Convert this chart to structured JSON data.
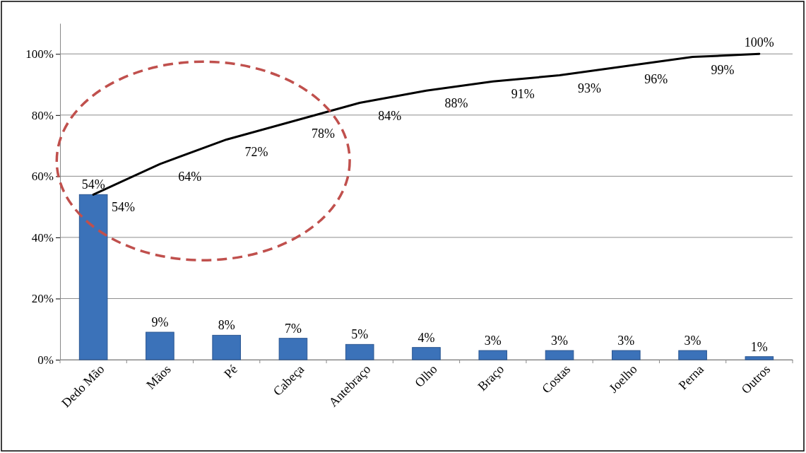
{
  "chart_data": {
    "type": "bar",
    "categories": [
      "Dedo Mão",
      "Mãos",
      "Pé",
      "Cabeça",
      "Antebraço",
      "Olho",
      "Braço",
      "Costas",
      "Joelho",
      "Perna",
      "Outros"
    ],
    "series": [
      {
        "color": "#3b72b9",
        "values": [
          54,
          9,
          8,
          7,
          5,
          4,
          3,
          3,
          3,
          3,
          1
        ],
        "value_labels": [
          "54%",
          "9%",
          "8%",
          "7%",
          "5%",
          "4%",
          "3%",
          "3%",
          "3%",
          "3%",
          "1%"
        ]
      },
      {
        "type": "line",
        "color": "#000000",
        "values": [
          54,
          64,
          72,
          78,
          84,
          88,
          91,
          93,
          96,
          99,
          100
        ],
        "value_labels": [
          "54%",
          "64%",
          "72%",
          "78%",
          "84%",
          "88%",
          "91%",
          "93%",
          "96%",
          "99%",
          "100%"
        ]
      }
    ],
    "ylim": [
      0,
      110
    ],
    "yticks": [
      {
        "value": 0,
        "label": "0%"
      },
      {
        "value": 20,
        "label": "20%"
      },
      {
        "value": 40,
        "label": "40%"
      },
      {
        "value": 60,
        "label": "60%"
      },
      {
        "value": 80,
        "label": "80%"
      },
      {
        "value": 100,
        "label": "100%"
      }
    ],
    "grid": "y",
    "marker": "none",
    "line_style": "solid"
  }
}
